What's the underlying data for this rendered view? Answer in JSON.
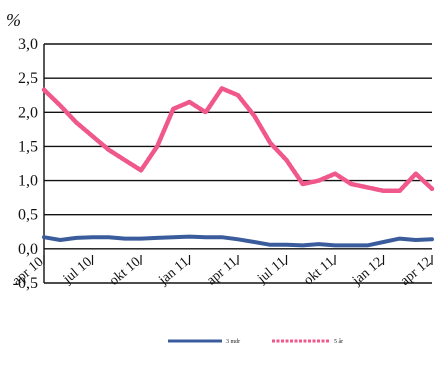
{
  "chart_data": {
    "type": "line",
    "unit_label": "%",
    "ylim": [
      -0.5,
      3.0
    ],
    "yticks": [
      "3,0",
      "2,5",
      "2,0",
      "1,5",
      "1,0",
      "0,5",
      "0,0",
      "-0,5"
    ],
    "ytick_values": [
      3.0,
      2.5,
      2.0,
      1.5,
      1.0,
      0.5,
      0.0,
      -0.5
    ],
    "x_tick_labels": [
      "apr 10",
      "jul 10",
      "okt 10",
      "jan 11",
      "apr 11",
      "jul 11",
      "okt 11",
      "jan 12",
      "apr 12"
    ],
    "grid": true,
    "legend_position": "bottom",
    "x": [
      "apr 10",
      "mai 10",
      "jun 10",
      "jul 10",
      "aug 10",
      "sep 10",
      "okt 10",
      "nov 10",
      "des 10",
      "jan 11",
      "feb 11",
      "mar 11",
      "apr 11",
      "mai 11",
      "jun 11",
      "jul 11",
      "aug 11",
      "sep 11",
      "okt 11",
      "nov 11",
      "des 11",
      "jan 12",
      "feb 12",
      "mar 12",
      "apr 12"
    ],
    "series": [
      {
        "name": "3 mdr",
        "color": "#3b5c9c",
        "values": [
          0.17,
          0.13,
          0.16,
          0.17,
          0.17,
          0.15,
          0.15,
          0.16,
          0.17,
          0.18,
          0.17,
          0.17,
          0.14,
          0.1,
          0.06,
          0.06,
          0.05,
          0.07,
          0.05,
          0.05,
          0.05,
          0.1,
          0.15,
          0.13,
          0.14
        ]
      },
      {
        "name": "5 år",
        "color": "#f0588c",
        "values": [
          2.33,
          2.1,
          1.85,
          1.65,
          1.45,
          1.3,
          1.15,
          1.5,
          2.05,
          2.15,
          2.0,
          2.35,
          2.25,
          1.95,
          1.55,
          1.3,
          0.95,
          1.0,
          1.1,
          0.95,
          0.9,
          0.85,
          0.85,
          1.1,
          0.88
        ]
      }
    ]
  }
}
